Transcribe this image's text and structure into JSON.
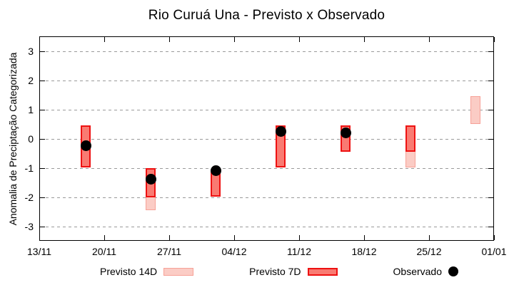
{
  "title": "Rio Curuá Una - Previsto x Observado",
  "y_axis": {
    "label": "Anomalia de Preciptação Categorizada",
    "ticks": [
      3,
      2,
      1,
      0,
      -1,
      -2,
      -3
    ]
  },
  "x_axis": {
    "ticks": [
      "13/11",
      "20/11",
      "27/11",
      "04/12",
      "11/12",
      "18/12",
      "25/12",
      "01/01"
    ]
  },
  "legend": {
    "items": [
      {
        "label": "Previsto 14D",
        "swatch": "pink-bar-swatch"
      },
      {
        "label": "Previsto 7D",
        "swatch": "red-bar-swatch"
      },
      {
        "label": "Observado",
        "swatch": "black-dot-swatch"
      }
    ]
  },
  "colors": {
    "previsto_14d_fill": "#fbccc5",
    "previsto_14d_border": "#f7a197",
    "previsto_7d_fill": "#f97b72",
    "previsto_7d_border": "#ee1111",
    "observado": "#000000",
    "grid": "#9a9a9a"
  },
  "chart_data": {
    "type": "bar",
    "title": "Rio Curuá Una - Previsto x Observado",
    "xlabel": "",
    "ylabel": "Anomalia de Preciptação Categorizada",
    "ylim": [
      -3.5,
      3.5
    ],
    "y_tick_values": [
      3,
      2,
      1,
      0,
      -1,
      -2,
      -3
    ],
    "x_tick_labels": [
      "13/11",
      "20/11",
      "27/11",
      "04/12",
      "11/12",
      "18/12",
      "25/12",
      "01/01"
    ],
    "x_range_days": [
      0,
      49
    ],
    "x_tick_days": [
      0,
      7,
      14,
      21,
      28,
      35,
      42,
      49
    ],
    "grid": "horizontal-dashed",
    "legend_position": "bottom-center",
    "series": [
      {
        "name": "Previsto 14D",
        "type": "range-bar",
        "points": [
          {
            "date": "25/11",
            "day": 12,
            "low": -2.45,
            "high": -1.0
          },
          {
            "date": "23/12",
            "day": 40,
            "low": -1.0,
            "high": 0.45
          },
          {
            "date": "30/12",
            "day": 47,
            "low": 0.5,
            "high": 1.45
          }
        ]
      },
      {
        "name": "Previsto 7D",
        "type": "range-bar",
        "points": [
          {
            "date": "18/11",
            "day": 5,
            "low": -1.0,
            "high": 0.45
          },
          {
            "date": "25/11",
            "day": 12,
            "low": -2.0,
            "high": -1.0
          },
          {
            "date": "02/12",
            "day": 19,
            "low": -2.0,
            "high": -1.05
          },
          {
            "date": "09/12",
            "day": 26,
            "low": -1.0,
            "high": 0.45
          },
          {
            "date": "16/12",
            "day": 33,
            "low": -0.45,
            "high": 0.45
          },
          {
            "date": "23/12",
            "day": 40,
            "low": -0.45,
            "high": 0.45
          }
        ]
      },
      {
        "name": "Observado",
        "type": "scatter",
        "points": [
          {
            "date": "18/11",
            "day": 5,
            "y": -0.25
          },
          {
            "date": "25/11",
            "day": 12,
            "y": -1.4
          },
          {
            "date": "02/12",
            "day": 19,
            "y": -1.1
          },
          {
            "date": "09/12",
            "day": 26,
            "y": 0.25
          },
          {
            "date": "16/12",
            "day": 33,
            "y": 0.2
          }
        ]
      }
    ]
  }
}
